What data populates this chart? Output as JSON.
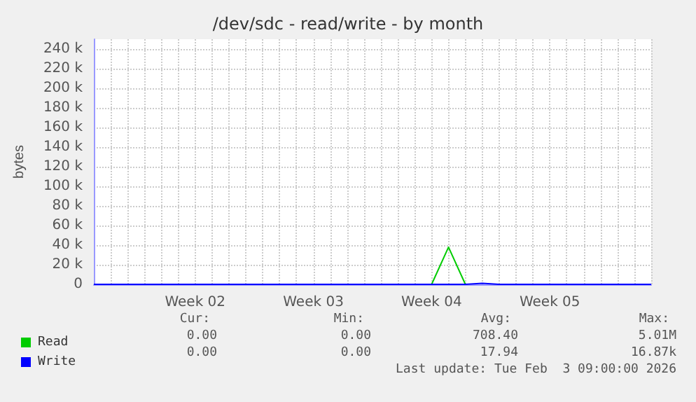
{
  "chart_data": {
    "type": "line",
    "title": "/dev/sdc - read/write - by month",
    "ylabel": "bytes",
    "categories": [
      null,
      null,
      null,
      null,
      null,
      null,
      "Week 02",
      null,
      null,
      null,
      null,
      null,
      null,
      "Week 03",
      null,
      null,
      null,
      null,
      null,
      null,
      "Week 04",
      null,
      null,
      null,
      null,
      null,
      null,
      "Week 05",
      null,
      null,
      null,
      null,
      null,
      null
    ],
    "ylim": [
      0,
      250000
    ],
    "yticks": [
      0,
      {
        "value": 20000,
        "label": "20 k"
      },
      {
        "value": 40000,
        "label": "40 k"
      },
      {
        "value": 60000,
        "label": "60 k"
      },
      {
        "value": 80000,
        "label": "80 k"
      },
      {
        "value": 100000,
        "label": "100 k"
      },
      {
        "value": 120000,
        "label": "120 k"
      },
      {
        "value": 140000,
        "label": "140 k"
      },
      {
        "value": 160000,
        "label": "160 k"
      },
      {
        "value": 180000,
        "label": "180 k"
      },
      {
        "value": 200000,
        "label": "200 k"
      },
      {
        "value": 220000,
        "label": "220 k"
      },
      {
        "value": 240000,
        "label": "240 k"
      }
    ],
    "series": [
      {
        "name": "Read",
        "color": "#00cc00",
        "values": [
          null,
          null,
          null,
          null,
          null,
          null,
          null,
          null,
          null,
          null,
          null,
          null,
          null,
          null,
          null,
          null,
          null,
          null,
          null,
          null,
          0,
          38000,
          0,
          null,
          null,
          null,
          null,
          null,
          null,
          null,
          null,
          null,
          null,
          null
        ]
      },
      {
        "name": "Write",
        "color": "#0000ff",
        "values": [
          0,
          0,
          0,
          0,
          0,
          0,
          0,
          0,
          0,
          0,
          0,
          0,
          0,
          0,
          0,
          0,
          0,
          0,
          0,
          0,
          0,
          0,
          0,
          1000,
          0,
          0,
          0,
          0,
          0,
          0,
          0,
          0,
          0,
          0
        ]
      }
    ],
    "grid": true,
    "legend": "bottom left",
    "marker": "none",
    "line_style": "solid",
    "annotations": [
      "Cur:",
      "Min:",
      "Avg:",
      "Max:",
      "0.00",
      "0.00",
      "708.40",
      "5.01M",
      "0.00",
      "0.00",
      "17.94",
      "16.87k",
      "Last update: Tue Feb  3 09:00:00 2026"
    ]
  }
}
